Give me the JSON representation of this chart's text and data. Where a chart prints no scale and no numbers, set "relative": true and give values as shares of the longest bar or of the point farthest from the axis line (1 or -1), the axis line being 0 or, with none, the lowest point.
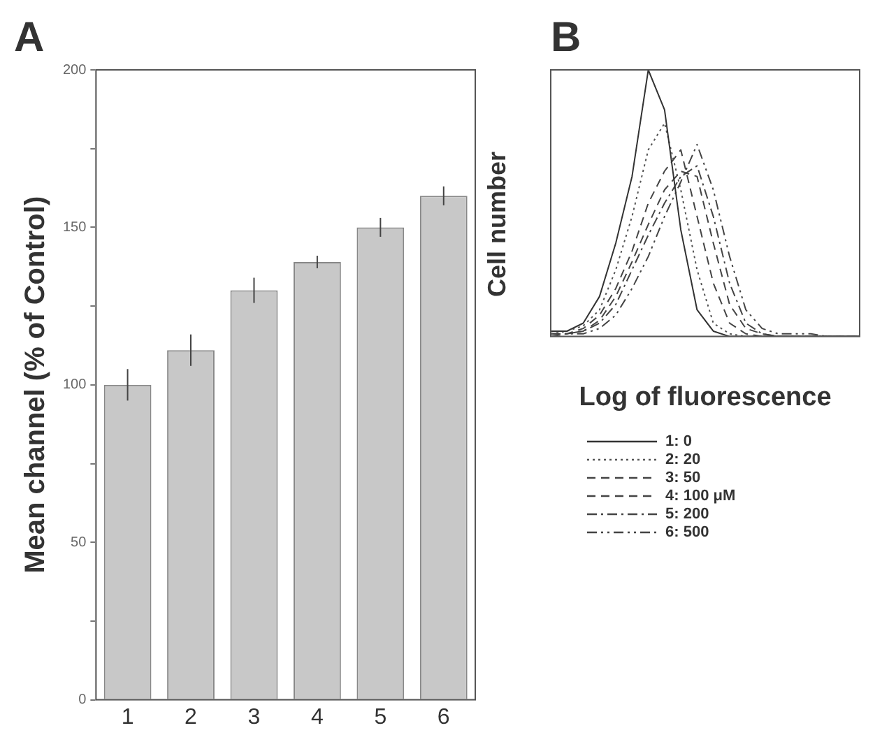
{
  "chart_data": [
    {
      "type": "bar",
      "title": "A",
      "ylabel": "Mean channel (% of Control)",
      "categories": [
        "1",
        "2",
        "3",
        "4",
        "5",
        "6"
      ],
      "values": [
        100,
        111,
        130,
        139,
        150,
        160
      ],
      "errors": [
        5,
        5,
        4,
        2,
        3,
        3
      ],
      "color": "#c8c8c8",
      "ylim": [
        0,
        200
      ],
      "yticks": [
        0,
        {
          "value": 25,
          "label": null
        },
        50,
        {
          "value": 75,
          "label": null
        },
        100,
        {
          "value": 125,
          "label": null
        },
        150,
        {
          "value": 175,
          "label": null
        },
        200
      ],
      "grid": false,
      "legend": false
    },
    {
      "type": "line",
      "title": "B",
      "xlabel": "Log of fluorescence",
      "ylabel": "Cell number",
      "relative": true,
      "legend": "bottom",
      "marker": "none",
      "grid": false,
      "categories": [
        null,
        null,
        null,
        null,
        null,
        null,
        null,
        null,
        null,
        null,
        null,
        null,
        null,
        null,
        null,
        null,
        null,
        null,
        null,
        null
      ],
      "series": [
        {
          "name": "1: 0",
          "color": "#333333",
          "line_style": "solid",
          "values": [
            0.02,
            0.02,
            0.05,
            0.15,
            0.35,
            0.6,
            1,
            0.85,
            0.4,
            0.1,
            0.02,
            0,
            0,
            0,
            0,
            0,
            0,
            0,
            0,
            0
          ]
        },
        {
          "name": "2: 20",
          "color": "#555555",
          "line_style": "dotted",
          "values": [
            0.01,
            0.02,
            0.04,
            0.1,
            0.25,
            0.45,
            0.7,
            0.8,
            0.55,
            0.25,
            0.05,
            0.01,
            0,
            0,
            0,
            0,
            0,
            0,
            0,
            0
          ]
        },
        {
          "name": "3: 50",
          "color": "#444444",
          "line_style": "dashed",
          "values": [
            0.01,
            0.01,
            0.03,
            0.08,
            0.18,
            0.32,
            0.5,
            0.62,
            0.7,
            0.45,
            0.2,
            0.05,
            0.01,
            0,
            0,
            0,
            0,
            0,
            0,
            0
          ]
        },
        {
          "name": "4: 100  μM",
          "color": "#444444",
          "line_style": "dashed",
          "values": [
            0.01,
            0.01,
            0.02,
            0.06,
            0.15,
            0.28,
            0.42,
            0.55,
            0.62,
            0.6,
            0.35,
            0.12,
            0.03,
            0.01,
            0,
            0,
            0,
            0,
            0,
            0
          ]
        },
        {
          "name": "5: 200",
          "color": "#444444",
          "line_style": "dashdot",
          "values": [
            0.01,
            0.01,
            0.02,
            0.05,
            0.12,
            0.25,
            0.38,
            0.5,
            0.6,
            0.64,
            0.45,
            0.2,
            0.05,
            0.01,
            0,
            0,
            0,
            0,
            0,
            0
          ]
        },
        {
          "name": "6: 500",
          "color": "#444444",
          "line_style": "dashdotdot",
          "values": [
            0,
            0.01,
            0.01,
            0.03,
            0.08,
            0.18,
            0.3,
            0.45,
            0.58,
            0.72,
            0.55,
            0.3,
            0.1,
            0.03,
            0.01,
            0.01,
            0.01,
            0,
            0,
            0
          ]
        }
      ]
    }
  ]
}
